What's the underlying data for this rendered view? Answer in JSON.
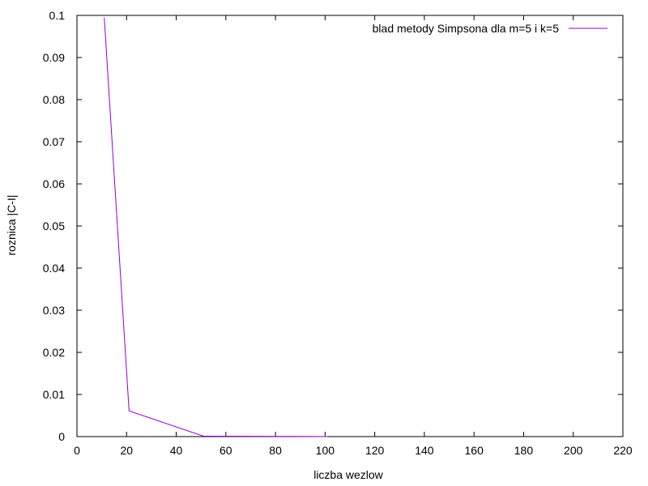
{
  "chart_data": {
    "type": "line",
    "xlabel": "liczba wezlow",
    "ylabel": "roznica |C-I|",
    "xlim": [
      0,
      220
    ],
    "ylim": [
      0,
      0.1
    ],
    "x_ticks": [
      "0",
      "20",
      "40",
      "60",
      "80",
      "100",
      "120",
      "140",
      "160",
      "180",
      "200",
      "220"
    ],
    "y_ticks": [
      "0",
      "0.01",
      "0.02",
      "0.03",
      "0.04",
      "0.05",
      "0.06",
      "0.07",
      "0.08",
      "0.09",
      "0.1"
    ],
    "legend_position": "top-right",
    "grid": false,
    "series": [
      {
        "name": "blad metody Simpsona dla m=5 i k=5",
        "color": "#9400d3",
        "points": [
          {
            "x": 11,
            "y": 0.0995
          },
          {
            "x": 21,
            "y": 0.0061
          },
          {
            "x": 51,
            "y": 0.0001
          },
          {
            "x": 101,
            "y": 0.0
          }
        ]
      }
    ]
  }
}
